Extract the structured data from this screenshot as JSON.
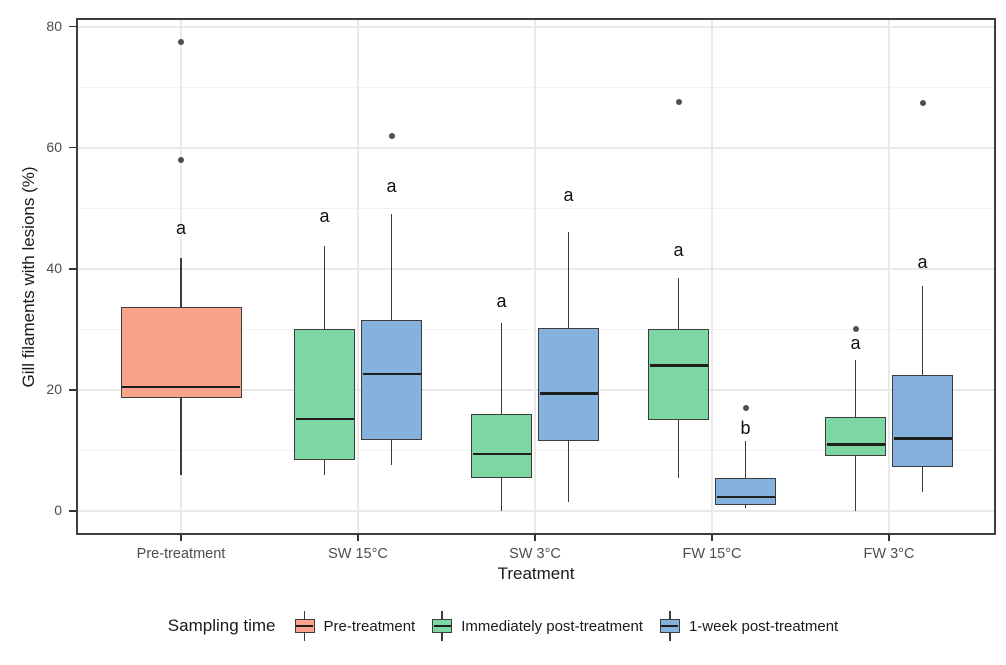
{
  "chart_data": {
    "type": "boxplot",
    "title": "",
    "xlabel": "Treatment",
    "ylabel": "Gill filaments with lesions (%)",
    "ylim": [
      -4.5,
      81.5
    ],
    "yticks": [
      0,
      20,
      40,
      60,
      80
    ],
    "yminor": [
      10,
      30,
      50,
      70
    ],
    "grid": "on",
    "categories": [
      "Pre-treatment",
      "SW 15°C",
      "SW 3°C",
      "FW 15°C",
      "FW 3°C"
    ],
    "legend": {
      "title": "Sampling time",
      "position": "bottom",
      "entries": [
        {
          "label": "Pre-treatment",
          "color": "#F9A48A"
        },
        {
          "label": "Immediately post-treatment",
          "color": "#7DD7A2"
        },
        {
          "label": "1-week post-treatment",
          "color": "#84B2DC"
        }
      ]
    },
    "series": [
      {
        "name": "Pre-treatment",
        "color": "#F9A48A",
        "boxes": [
          {
            "category": "Pre-treatment",
            "low": 6,
            "q1": 18.6,
            "median": 20.5,
            "q3": 33.7,
            "high": 41.7,
            "outliers": [
              58,
              77.5
            ],
            "letter": "a",
            "letter_y": 46.5
          }
        ]
      },
      {
        "name": "Immediately post-treatment",
        "color": "#7DD7A2",
        "boxes": [
          {
            "category": "SW 15°C",
            "low": 6,
            "q1": 8.5,
            "median": 15.2,
            "q3": 30,
            "high": 43.8,
            "outliers": [],
            "letter": "a",
            "letter_y": 48.5
          },
          {
            "category": "SW 3°C",
            "low": 0,
            "q1": 5.5,
            "median": 9.4,
            "q3": 16,
            "high": 31,
            "outliers": [],
            "letter": "a",
            "letter_y": 34.5
          },
          {
            "category": "FW 15°C",
            "low": 5.5,
            "q1": 15,
            "median": 24,
            "q3": 30,
            "high": 38.4,
            "outliers": [
              67.5
            ],
            "letter": "a",
            "letter_y": 43
          },
          {
            "category": "FW 3°C",
            "low": 0,
            "q1": 9,
            "median": 11,
            "q3": 15.5,
            "high": 25,
            "outliers": [
              30
            ],
            "letter": "a",
            "letter_y": 27.5
          }
        ]
      },
      {
        "name": "1-week post-treatment",
        "color": "#84B2DC",
        "boxes": [
          {
            "category": "SW 15°C",
            "low": 7.6,
            "q1": 11.8,
            "median": 22.6,
            "q3": 31.5,
            "high": 49,
            "outliers": [
              62
            ],
            "letter": "a",
            "letter_y": 53.5
          },
          {
            "category": "SW 3°C",
            "low": 1.5,
            "q1": 11.6,
            "median": 19.4,
            "q3": 30.2,
            "high": 46,
            "outliers": [],
            "letter": "a",
            "letter_y": 52
          },
          {
            "category": "FW 15°C",
            "low": 0.5,
            "q1": 1,
            "median": 2.3,
            "q3": 5.4,
            "high": 11.5,
            "outliers": [
              17
            ],
            "letter": "b",
            "letter_y": 13.5
          },
          {
            "category": "FW 3°C",
            "low": 3.2,
            "q1": 7.2,
            "median": 12,
            "q3": 22.5,
            "high": 37.2,
            "outliers": [
              67.4
            ],
            "letter": "a",
            "letter_y": 41
          }
        ]
      }
    ],
    "style": {
      "box_border": "#3c3c3c",
      "median_color": "#1e1e1e",
      "whisker_color": "#3c3c3c",
      "outlier_color": "#4e4e4e",
      "grid_major": "#e9e9e9",
      "grid_minor": "#f3f3f3",
      "axis_text": "#4d4d4d",
      "title_text": "#1a1a1a"
    }
  }
}
